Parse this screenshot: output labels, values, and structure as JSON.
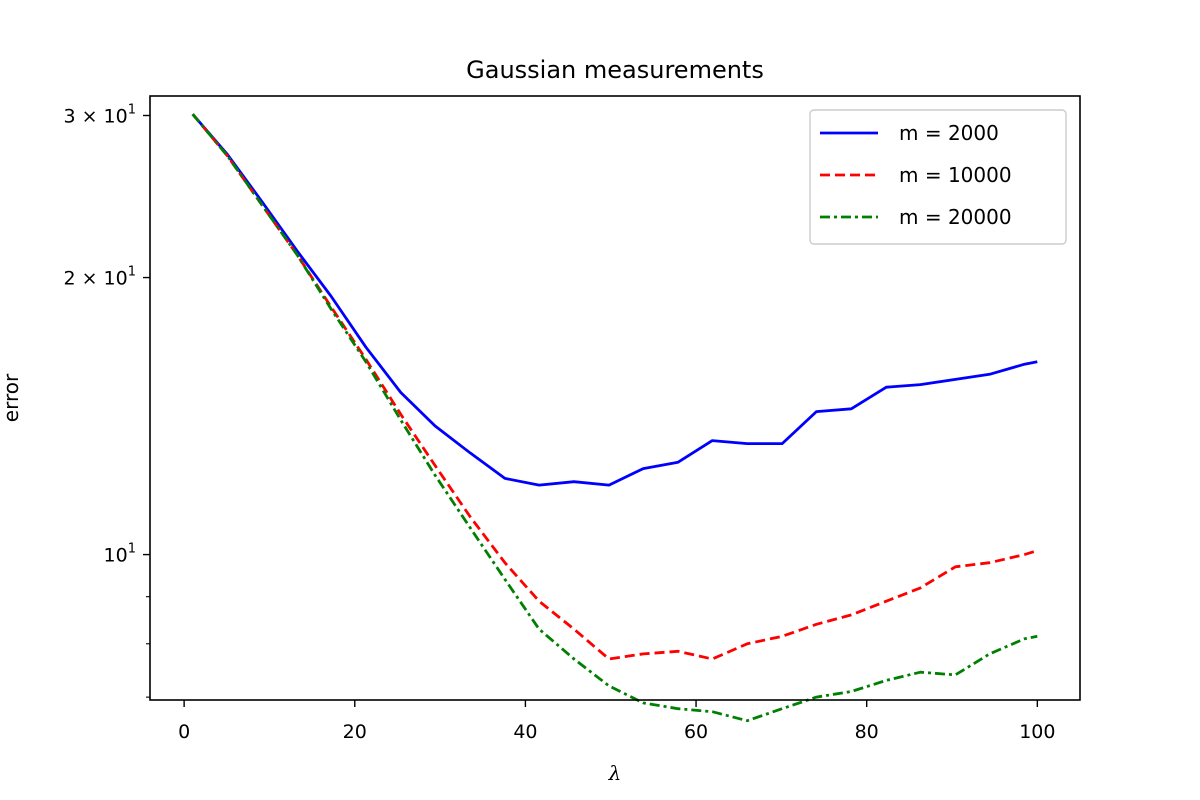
{
  "chart_data": {
    "type": "line",
    "title": "Gaussian measurements",
    "xlabel": "λ",
    "ylabel": "error",
    "xlim": [
      -4,
      105
    ],
    "ylim": [
      6.95,
      31.5
    ],
    "yscale": "log",
    "xticks": [
      0,
      20,
      40,
      60,
      80,
      100
    ],
    "yticks": [
      {
        "value": 30,
        "mantissa": "3",
        "exp": "1"
      },
      {
        "value": 20,
        "mantissa": "2",
        "exp": "1"
      },
      {
        "value": 10,
        "mantissa": "",
        "exp": "1"
      }
    ],
    "minor_yticks": [
      7,
      8,
      9
    ],
    "grid": false,
    "legend_position": "top-right",
    "x": [
      1,
      5.1,
      9.1,
      13.2,
      17.2,
      21.3,
      25.4,
      29.4,
      33.5,
      37.6,
      41.6,
      45.7,
      49.8,
      53.8,
      57.9,
      61.9,
      66,
      70.1,
      74.1,
      78.2,
      82.3,
      86.3,
      90.4,
      94.4,
      98.5,
      100
    ],
    "series": [
      {
        "name": "m = 2000",
        "color": "#0000ff",
        "dash": "solid",
        "values": [
          30.1,
          27.2,
          24.2,
          21.4,
          19.1,
          16.8,
          15.0,
          13.8,
          12.9,
          12.1,
          11.9,
          12.0,
          11.9,
          12.4,
          12.6,
          13.3,
          13.2,
          13.2,
          14.3,
          14.4,
          15.2,
          15.3,
          15.5,
          15.7,
          16.1,
          16.2
        ]
      },
      {
        "name": "m = 10000",
        "color": "#ff0000",
        "dash": "dashed",
        "values": [
          30.1,
          27.1,
          24.0,
          21.2,
          18.6,
          16.3,
          14.2,
          12.5,
          11.0,
          9.8,
          8.9,
          8.3,
          7.7,
          7.8,
          7.85,
          7.7,
          8.0,
          8.15,
          8.4,
          8.6,
          8.9,
          9.2,
          9.7,
          9.8,
          10.0,
          10.1
        ]
      },
      {
        "name": "m = 20000",
        "color": "#008000",
        "dash": "dashdot",
        "values": [
          30.1,
          27.1,
          24.0,
          21.2,
          18.5,
          16.2,
          14.0,
          12.2,
          10.7,
          9.4,
          8.3,
          7.7,
          7.2,
          6.9,
          6.8,
          6.75,
          6.6,
          6.8,
          7.0,
          7.1,
          7.3,
          7.45,
          7.4,
          7.8,
          8.1,
          8.15
        ]
      }
    ]
  }
}
